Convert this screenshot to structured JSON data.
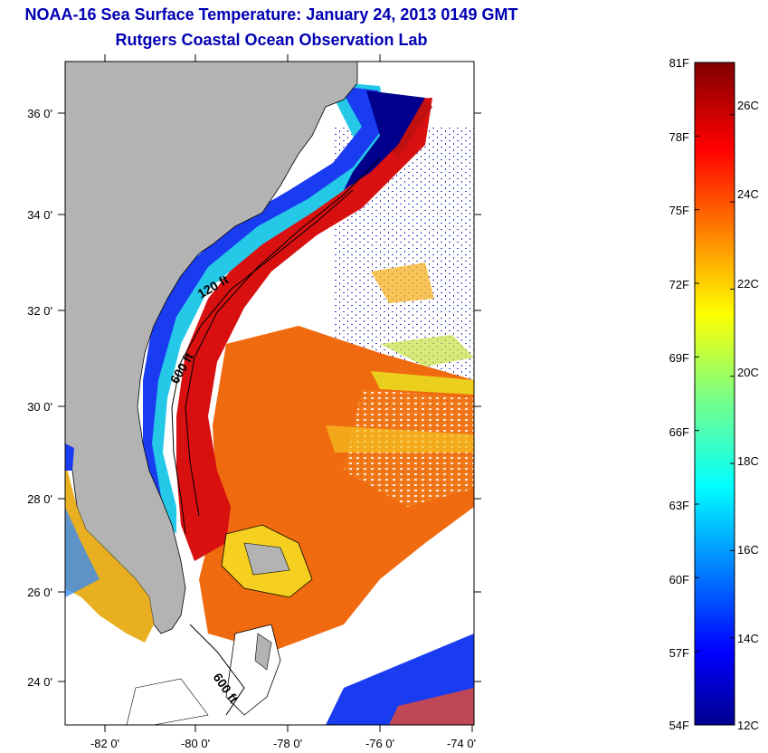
{
  "header": {
    "title": "NOAA-16 Sea Surface Temperature:  January 24, 2013 0149 GMT",
    "subtitle": "Rutgers Coastal Ocean Observation Lab"
  },
  "map": {
    "region": "US Southeast coast, Florida, Bahamas",
    "lon_ticks": [
      "-82 0'",
      "-80 0'",
      "-78 0'",
      "-76 0'",
      "-74 0'"
    ],
    "lat_ticks": [
      "36 0'",
      "34 0'",
      "32 0'",
      "30 0'",
      "28 0'",
      "26 0'",
      "24 0'"
    ],
    "contour_labels": [
      "120 ft",
      "600 ft",
      "600 ft"
    ],
    "colors": {
      "land": "#b3b3b3",
      "cloud": "#ffffff",
      "gulf_stream": "#d81010",
      "warm_water": "#f06a10",
      "shelf_water": "#1a3cf0",
      "cold_water": "#00008c"
    }
  },
  "colorbar": {
    "fahrenheit_labels": [
      "81F",
      "78F",
      "75F",
      "72F",
      "69F",
      "66F",
      "63F",
      "60F",
      "57F",
      "54F"
    ],
    "celsius_labels": [
      "26C",
      "24C",
      "22C",
      "20C",
      "18C",
      "16C",
      "14C",
      "12C"
    ],
    "colormap": "jet",
    "range_f": [
      54,
      81
    ],
    "range_c": [
      12,
      27.2
    ]
  }
}
